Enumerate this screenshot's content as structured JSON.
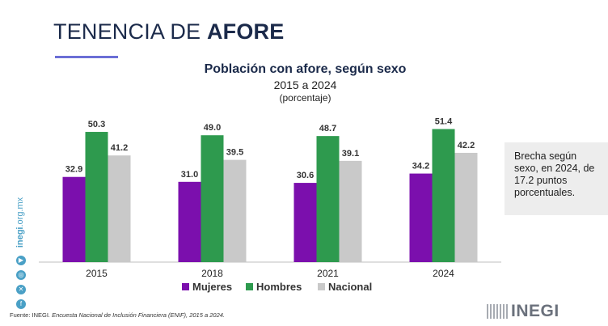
{
  "page": {
    "title_regular": "TENENCIA DE ",
    "title_bold": "AFORE"
  },
  "note": {
    "text": "Brecha según sexo, en 2024, de 17.2 puntos porcentuales."
  },
  "sidebar": {
    "site_bold": "inegi",
    "site_rest": ".org.mx",
    "icons": [
      "youtube-icon",
      "instagram-icon",
      "x-icon",
      "facebook-icon"
    ]
  },
  "source": {
    "label": "Fuente: ",
    "org": "INEGI",
    "text": ". Encuesta Nacional de Inclusión Financiera (ENIF), 2015 a 2024."
  },
  "logo": {
    "text": "INEGI"
  },
  "colors": {
    "mujeres": "#7b0fad",
    "hombres": "#2e9a4e",
    "nacional": "#c9c9c9",
    "accent_line": "#6b6fd6",
    "title": "#1b2a4a"
  },
  "chart_data": {
    "type": "bar",
    "title": "Población con afore, según sexo",
    "subtitle": "2015 a 2024",
    "unit_label": "(porcentaje)",
    "categories": [
      "2015",
      "2018",
      "2021",
      "2024"
    ],
    "series": [
      {
        "name": "Mujeres",
        "values": [
          32.9,
          31.0,
          30.6,
          34.2
        ]
      },
      {
        "name": "Hombres",
        "values": [
          50.3,
          49.0,
          48.7,
          51.4
        ]
      },
      {
        "name": "Nacional",
        "values": [
          41.2,
          39.5,
          39.1,
          42.2
        ]
      }
    ],
    "ylim": [
      0,
      60
    ],
    "grid": false,
    "legend": "bottom-center",
    "data_labels": true
  }
}
